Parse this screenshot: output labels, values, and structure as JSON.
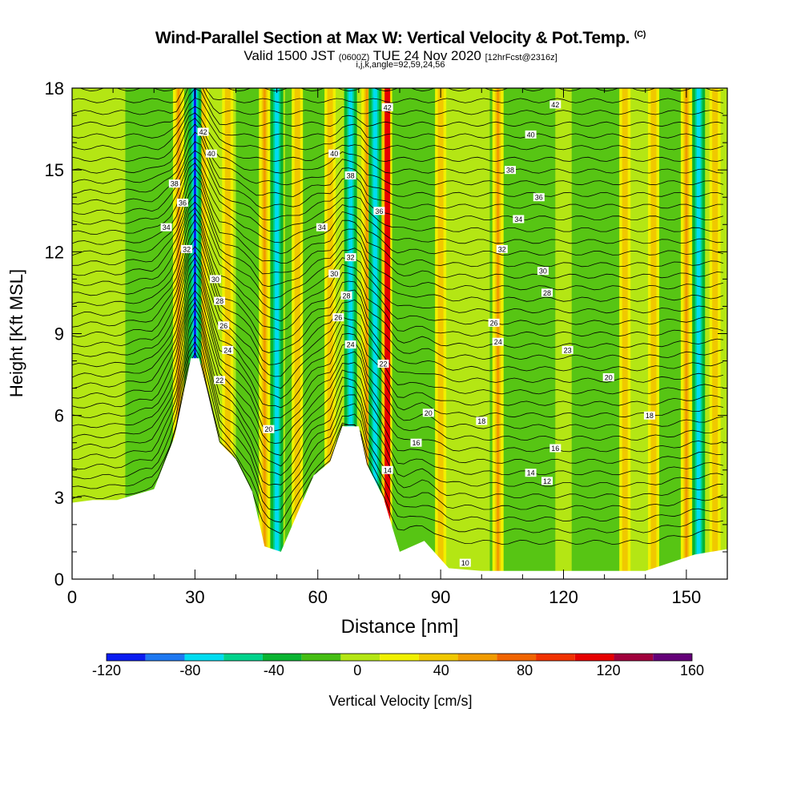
{
  "titles": {
    "main": "Wind-Parallel Section at Max W: Vertical Velocity & Pot.Temp.",
    "copyright": "(C)",
    "valid_a": "Valid 1500 JST",
    "valid_utc": "(0600Z)",
    "valid_b": "TUE 24 Nov 2020",
    "forecast": "[12hrFcst@2316z]",
    "indices": "i,j,k,angle=92,59,24,56"
  },
  "chart_data": {
    "type": "heatmap",
    "xlabel": "Distance [nm]",
    "ylabel": "Height [Kft MSL]",
    "xlim": [
      0,
      160
    ],
    "ylim": [
      0,
      18
    ],
    "x_ticks": [
      "0",
      "30",
      "60",
      "90",
      "120",
      "150"
    ],
    "y_ticks": [
      "0",
      "3",
      "6",
      "9",
      "12",
      "15",
      "18"
    ],
    "colorbar": {
      "label": "Vertical Velocity [cm/s]",
      "tick_labels": [
        "-120",
        "-80",
        "-40",
        "0",
        "40",
        "80",
        "120",
        "160"
      ],
      "bounds": [
        -120,
        160
      ],
      "colors": [
        "#0a1cf0",
        "#1e78f0",
        "#00dcf0",
        "#00d28c",
        "#0ab432",
        "#46be14",
        "#b4e614",
        "#f0f000",
        "#f0c800",
        "#f09b00",
        "#f06400",
        "#f03200",
        "#e60000",
        "#a0003c",
        "#640078"
      ]
    },
    "terrain_height_kft": [
      [
        0,
        2.8
      ],
      [
        5,
        2.9
      ],
      [
        11,
        2.9
      ],
      [
        20,
        3.3
      ],
      [
        25,
        5.2
      ],
      [
        29,
        8.1
      ],
      [
        31,
        8.1
      ],
      [
        33,
        6.9
      ],
      [
        36,
        5.0
      ],
      [
        40,
        4.4
      ],
      [
        44,
        3.2
      ],
      [
        47,
        1.2
      ],
      [
        51,
        1.0
      ],
      [
        55,
        2.4
      ],
      [
        59,
        3.8
      ],
      [
        63,
        4.3
      ],
      [
        66,
        5.6
      ],
      [
        70,
        5.6
      ],
      [
        72,
        4.2
      ],
      [
        76,
        3.0
      ],
      [
        80,
        1.0
      ],
      [
        86,
        1.4
      ],
      [
        92,
        0.4
      ],
      [
        100,
        0.3
      ],
      [
        140,
        0.3
      ],
      [
        152,
        0.9
      ],
      [
        160,
        1.1
      ]
    ],
    "updraft_columns_nm": [
      26,
      32,
      38,
      47,
      55,
      63,
      72,
      76,
      90,
      104,
      135,
      142,
      150,
      157
    ],
    "downdraft_columns_nm": [
      30,
      50,
      68,
      74,
      153
    ],
    "theta_contour_labels": [
      {
        "label": "42",
        "x": 32,
        "y": 16.4
      },
      {
        "label": "40",
        "x": 34,
        "y": 15.6
      },
      {
        "label": "38",
        "x": 25,
        "y": 14.5
      },
      {
        "label": "36",
        "x": 27,
        "y": 13.8
      },
      {
        "label": "34",
        "x": 23,
        "y": 12.9
      },
      {
        "label": "32",
        "x": 28,
        "y": 12.1
      },
      {
        "label": "30",
        "x": 35,
        "y": 11.0
      },
      {
        "label": "28",
        "x": 36,
        "y": 10.2
      },
      {
        "label": "26",
        "x": 37,
        "y": 9.3
      },
      {
        "label": "24",
        "x": 38,
        "y": 8.4
      },
      {
        "label": "22",
        "x": 36,
        "y": 7.3
      },
      {
        "label": "20",
        "x": 48,
        "y": 5.5
      },
      {
        "label": "42",
        "x": 77,
        "y": 17.3
      },
      {
        "label": "40",
        "x": 64,
        "y": 15.6
      },
      {
        "label": "38",
        "x": 68,
        "y": 14.8
      },
      {
        "label": "36",
        "x": 75,
        "y": 13.5
      },
      {
        "label": "34",
        "x": 61,
        "y": 12.9
      },
      {
        "label": "32",
        "x": 68,
        "y": 11.8
      },
      {
        "label": "30",
        "x": 64,
        "y": 11.2
      },
      {
        "label": "28",
        "x": 67,
        "y": 10.4
      },
      {
        "label": "26",
        "x": 65,
        "y": 9.6
      },
      {
        "label": "24",
        "x": 68,
        "y": 8.6
      },
      {
        "label": "22",
        "x": 76,
        "y": 7.9
      },
      {
        "label": "20",
        "x": 87,
        "y": 6.1
      },
      {
        "label": "18",
        "x": 100,
        "y": 5.8
      },
      {
        "label": "16",
        "x": 84,
        "y": 5.0
      },
      {
        "label": "14",
        "x": 77,
        "y": 4.0
      },
      {
        "label": "42",
        "x": 118,
        "y": 17.4
      },
      {
        "label": "40",
        "x": 112,
        "y": 16.3
      },
      {
        "label": "38",
        "x": 107,
        "y": 15.0
      },
      {
        "label": "36",
        "x": 114,
        "y": 14.0
      },
      {
        "label": "34",
        "x": 109,
        "y": 13.2
      },
      {
        "label": "32",
        "x": 105,
        "y": 12.1
      },
      {
        "label": "30",
        "x": 115,
        "y": 11.3
      },
      {
        "label": "28",
        "x": 116,
        "y": 10.5
      },
      {
        "label": "26",
        "x": 103,
        "y": 9.4
      },
      {
        "label": "24",
        "x": 104,
        "y": 8.7
      },
      {
        "label": "23",
        "x": 121,
        "y": 8.4
      },
      {
        "label": "20",
        "x": 131,
        "y": 7.4
      },
      {
        "label": "18",
        "x": 141,
        "y": 6.0
      },
      {
        "label": "16",
        "x": 118,
        "y": 4.8
      },
      {
        "label": "14",
        "x": 112,
        "y": 3.9
      },
      {
        "label": "12",
        "x": 116,
        "y": 3.6
      },
      {
        "label": "10",
        "x": 96,
        "y": 0.6
      }
    ]
  }
}
